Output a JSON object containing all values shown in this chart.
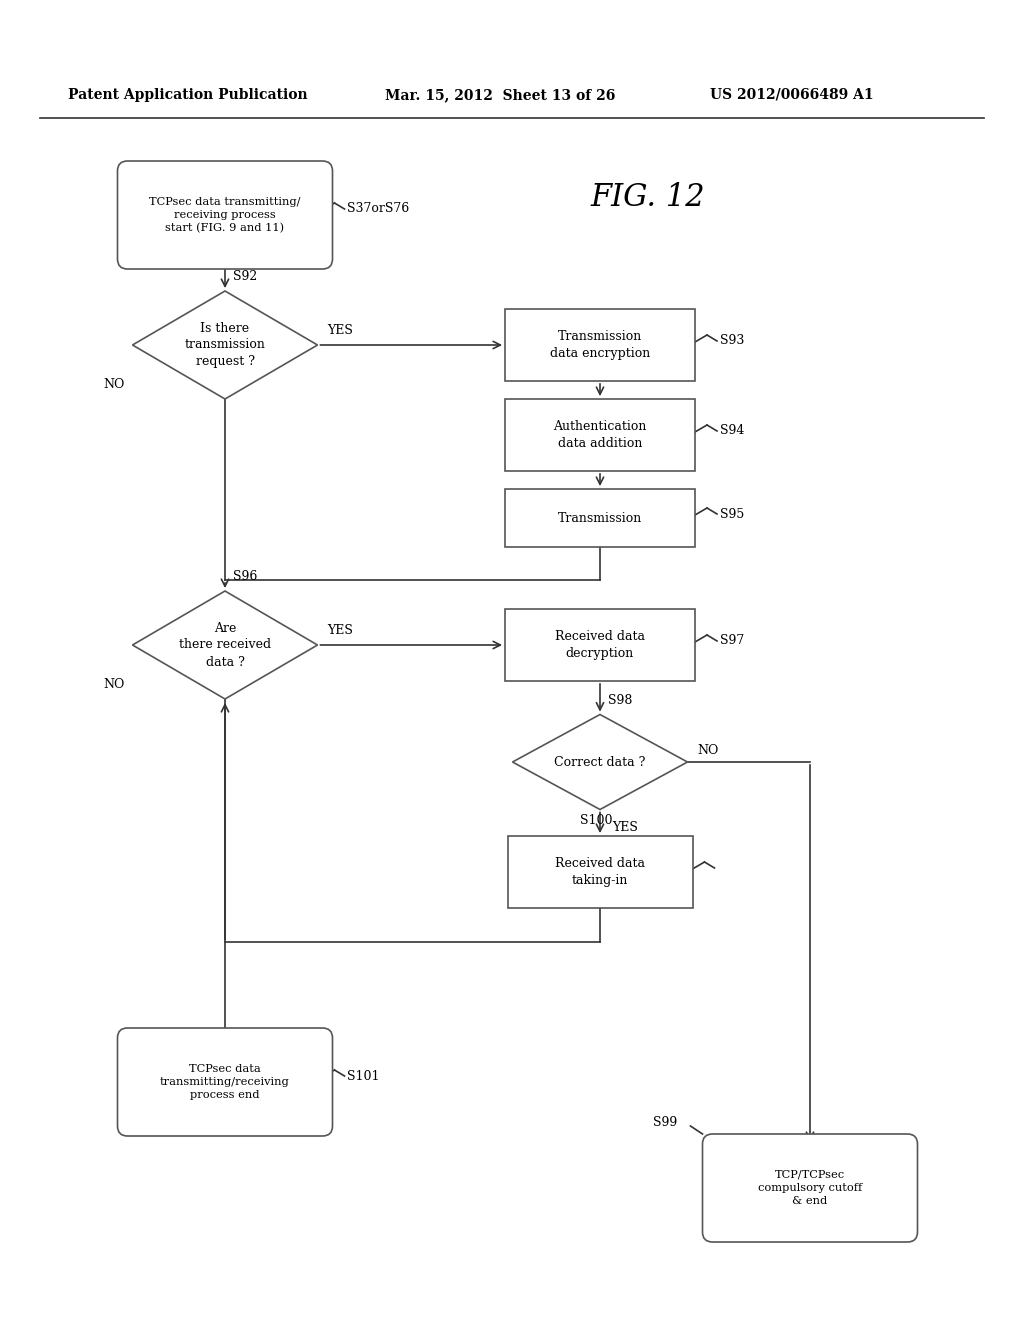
{
  "bg_color": "#ffffff",
  "header_left": "Patent Application Publication",
  "header_mid": "Mar. 15, 2012  Sheet 13 of 26",
  "header_right": "US 2012/0066489 A1",
  "fig_label": "FIG. 12"
}
